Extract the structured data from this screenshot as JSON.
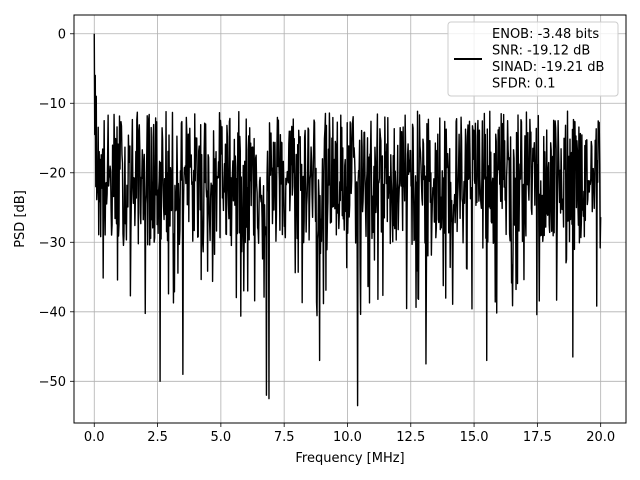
{
  "chart_data": {
    "type": "line",
    "xlabel": "Frequency [MHz]",
    "ylabel": "PSD [dB]",
    "xlim": [
      -0.8,
      21.0
    ],
    "ylim": [
      -56,
      2.7
    ],
    "xticks": [
      0.0,
      2.5,
      5.0,
      7.5,
      10.0,
      12.5,
      15.0,
      17.5,
      20.0
    ],
    "xtick_labels": [
      "0.0",
      "2.5",
      "5.0",
      "7.5",
      "10.0",
      "12.5",
      "15.0",
      "17.5",
      "20.0"
    ],
    "yticks": [
      0,
      -10,
      -20,
      -30,
      -40,
      -50
    ],
    "ytick_labels": [
      "0",
      "−10",
      "−20",
      "−30",
      "−40",
      "−50"
    ],
    "grid": true,
    "legend_position": "top-right",
    "line_color": "#000000",
    "legend": {
      "lines": [
        "ENOB: -3.48 bits",
        "SNR: -19.12 dB",
        "SINAD: -19.21 dB",
        "SFDR: 0.1"
      ]
    },
    "series": [
      {
        "x_range": [
          0.0,
          20.0
        ],
        "points": 1024,
        "peak": {
          "x": 0.0,
          "y": 0.0
        },
        "mean": -20.5,
        "typical_max": -12.0,
        "typical_min": -30.0,
        "notable_dips": [
          {
            "x": 2.6,
            "y": -50.0
          },
          {
            "x": 3.5,
            "y": -49.0
          },
          {
            "x": 6.8,
            "y": -52.0
          },
          {
            "x": 6.9,
            "y": -52.5
          },
          {
            "x": 8.9,
            "y": -47.0
          },
          {
            "x": 10.4,
            "y": -53.5
          },
          {
            "x": 13.1,
            "y": -47.5
          },
          {
            "x": 15.5,
            "y": -47.0
          },
          {
            "x": 18.9,
            "y": -46.5
          }
        ]
      }
    ]
  }
}
